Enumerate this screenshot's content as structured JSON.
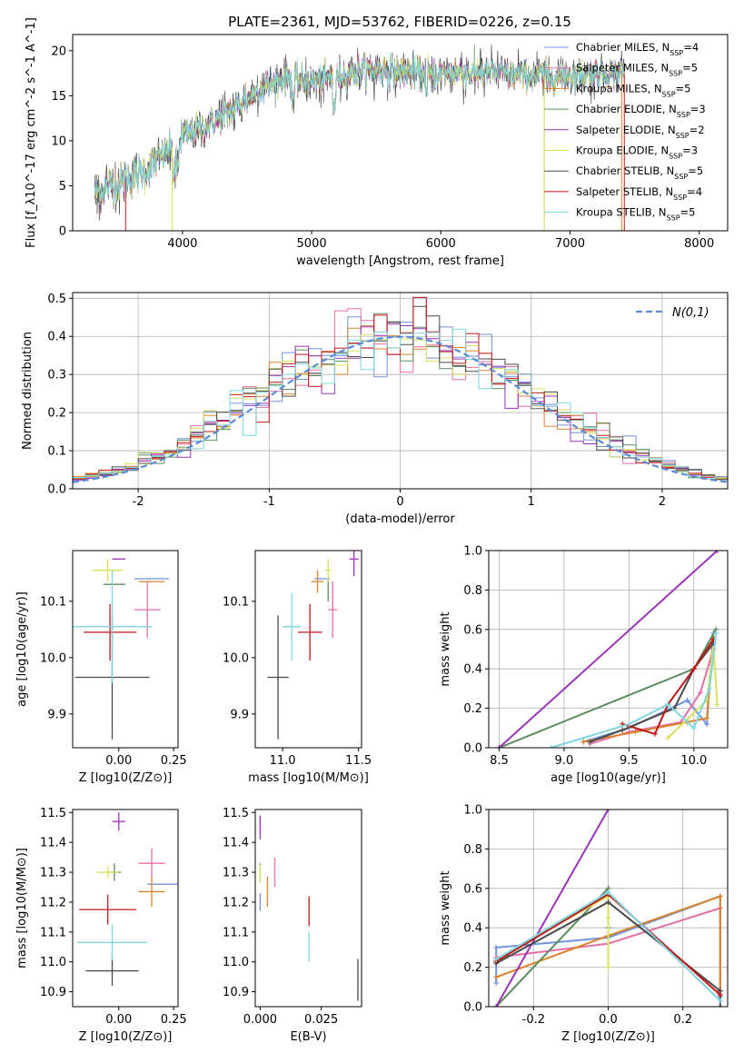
{
  "figure": {
    "title": "PLATE=2361, MJD=53762, FIBERID=0226, z=0.15"
  },
  "colors": {
    "Chabrier MILES": "#6f93dc",
    "Salpeter MILES": "#e66fa8",
    "Kroupa MILES": "#d9832b",
    "Chabrier ELODIE": "#5c8c5c",
    "Salpeter ELODIE": "#9b34b8",
    "Kroupa ELODIE": "#d8e060",
    "Chabrier STELIB": "#4a4a4a",
    "Salpeter STELIB": "#c01818",
    "Kroupa STELIB": "#7fd6e0",
    "gaussian": "#5a8ad8"
  },
  "chart_data": [
    {
      "id": "spectrum",
      "type": "line",
      "xlabel": "wavelength [Angstrom, rest frame]",
      "ylabel": "Flux [f_λ10^-17 erg cm^-2 s^-1 A^-1]",
      "xlim": [
        3150,
        8220
      ],
      "ylim": [
        0,
        21.8
      ],
      "xticks": [
        4000,
        5000,
        6000,
        7000,
        8000
      ],
      "yticks": [
        0,
        5,
        10,
        15,
        20
      ],
      "legend_position": "top-right",
      "series_note_unused": "",
      "legend": [
        {
          "name": "Chabrier MILES",
          "nssp": "4"
        },
        {
          "name": "Salpeter MILES",
          "nssp": "5"
        },
        {
          "name": "Kroupa MILES",
          "nssp": "5"
        },
        {
          "name": "Chabrier ELODIE",
          "nssp": "3"
        },
        {
          "name": "Salpeter ELODIE",
          "nssp": "2"
        },
        {
          "name": "Kroupa ELODIE",
          "nssp": "3"
        },
        {
          "name": "Chabrier STELIB",
          "nssp": "5"
        },
        {
          "name": "Salpeter STELIB",
          "nssp": "4"
        },
        {
          "name": "Kroupa STELIB",
          "nssp": "5"
        }
      ],
      "continuum": {
        "x": [
          3320,
          3500,
          3700,
          3900,
          4000,
          4200,
          4400,
          4600,
          4800,
          5000,
          5200,
          5400,
          5600,
          5800,
          6000,
          6200,
          6400,
          6600,
          6800,
          7000,
          7200,
          7400
        ],
        "y": [
          4.3,
          5.2,
          6.5,
          9.0,
          10.5,
          11.8,
          13.5,
          15.8,
          17.0,
          16.5,
          17.2,
          17.8,
          17.8,
          17.6,
          17.4,
          17.6,
          17.5,
          17.3,
          17.2,
          17.3,
          17.5,
          17.5
        ]
      },
      "spectrum_range": [
        3320,
        7420
      ]
    },
    {
      "id": "residuals",
      "type": "step",
      "xlabel": "(data-model)/error",
      "ylabel": "Normed distribution",
      "xlim": [
        -2.5,
        2.5
      ],
      "ylim": [
        0,
        0.515
      ],
      "xticks": [
        -2,
        -1,
        0,
        1,
        2
      ],
      "yticks": [
        0.0,
        0.1,
        0.2,
        0.3,
        0.4,
        0.5
      ],
      "grid": true,
      "legend_position": "top-right",
      "gaussian_label": "N(0,1)",
      "bin_width": 0.1
    },
    {
      "id": "z-vs-age",
      "type": "errorbar",
      "xlabel": "Z [log10(Z/Z⊙)]",
      "ylabel": "age  [log10(age/yr)]",
      "xlim": [
        -0.21,
        0.27
      ],
      "ylim": [
        9.84,
        10.19
      ],
      "xticks": [
        0.0,
        0.25
      ],
      "yticks": [
        9.9,
        10.0,
        10.1
      ],
      "points": [
        {
          "model": "Chabrier MILES",
          "x": 0.15,
          "xerr": 0.08,
          "y": 10.14,
          "yerr": 0.0
        },
        {
          "model": "Salpeter MILES",
          "x": 0.13,
          "xerr": 0.06,
          "y": 10.085,
          "yerr": 0.05
        },
        {
          "model": "Kroupa MILES",
          "x": 0.15,
          "xerr": 0.06,
          "y": 10.135,
          "yerr": 0.0
        },
        {
          "model": "Chabrier ELODIE",
          "x": -0.02,
          "xerr": 0.05,
          "y": 10.13,
          "yerr": 0.0
        },
        {
          "model": "Salpeter ELODIE",
          "x": 0.0,
          "xerr": 0.03,
          "y": 10.175,
          "yerr": 0.0
        },
        {
          "model": "Kroupa ELODIE",
          "x": -0.05,
          "xerr": 0.07,
          "y": 10.155,
          "yerr": 0.02
        },
        {
          "model": "Chabrier STELIB",
          "x": -0.03,
          "xerr": 0.17,
          "y": 9.965,
          "yerr": 0.11
        },
        {
          "model": "Salpeter STELIB",
          "x": -0.04,
          "xerr": 0.12,
          "y": 10.045,
          "yerr": 0.05
        },
        {
          "model": "Kroupa STELIB",
          "x": -0.03,
          "xerr": 0.18,
          "y": 10.055,
          "yerr": 0.1
        }
      ]
    },
    {
      "id": "mass-vs-age",
      "type": "errorbar",
      "xlabel": "mass [log10(M/M⊙)]",
      "ylabel": "",
      "xlim": [
        10.82,
        11.52
      ],
      "ylim": [
        9.84,
        10.19
      ],
      "xticks": [
        11.0,
        11.5
      ],
      "yticks": [
        9.9,
        10.0,
        10.1
      ],
      "points": [
        {
          "model": "Chabrier MILES",
          "x": 11.26,
          "xerr": 0.05,
          "y": 10.14,
          "yerr": 0.0
        },
        {
          "model": "Salpeter MILES",
          "x": 11.33,
          "xerr": 0.03,
          "y": 10.085,
          "yerr": 0.05
        },
        {
          "model": "Kroupa MILES",
          "x": 11.23,
          "xerr": 0.04,
          "y": 10.135,
          "yerr": 0.02
        },
        {
          "model": "Chabrier ELODIE",
          "x": 11.3,
          "xerr": 0.0,
          "y": 10.12,
          "yerr": 0.02
        },
        {
          "model": "Salpeter ELODIE",
          "x": 11.47,
          "xerr": 0.03,
          "y": 10.175,
          "yerr": 0.03
        },
        {
          "model": "Kroupa ELODIE",
          "x": 11.3,
          "xerr": 0.02,
          "y": 10.155,
          "yerr": 0.02
        },
        {
          "model": "Chabrier STELIB",
          "x": 10.97,
          "xerr": 0.07,
          "y": 9.965,
          "yerr": 0.11
        },
        {
          "model": "Salpeter STELIB",
          "x": 11.18,
          "xerr": 0.08,
          "y": 10.045,
          "yerr": 0.05
        },
        {
          "model": "Kroupa STELIB",
          "x": 11.06,
          "xerr": 0.06,
          "y": 10.055,
          "yerr": 0.06
        }
      ]
    },
    {
      "id": "age-vs-weight",
      "type": "line",
      "xlabel": "age  [log10(age/yr)]",
      "ylabel": "mass weight",
      "xlim": [
        8.42,
        10.26
      ],
      "ylim": [
        0,
        1.0
      ],
      "xticks": [
        8.5,
        9.0,
        9.5,
        10.0
      ],
      "yticks": [
        0.0,
        0.2,
        0.4,
        0.6,
        0.8,
        1.0
      ],
      "grid": true,
      "series": [
        {
          "model": "Chabrier MILES",
          "x": [
            9.15,
            9.5,
            9.95,
            10.1,
            10.15
          ],
          "y": [
            0.03,
            0.1,
            0.24,
            0.12,
            0.58
          ]
        },
        {
          "model": "Salpeter MILES",
          "x": [
            9.2,
            9.5,
            9.9,
            10.05,
            10.15
          ],
          "y": [
            0.02,
            0.08,
            0.13,
            0.28,
            0.5
          ]
        },
        {
          "model": "Kroupa MILES",
          "x": [
            9.15,
            9.55,
            9.95,
            10.1,
            10.15
          ],
          "y": [
            0.03,
            0.08,
            0.13,
            0.15,
            0.56
          ]
        },
        {
          "model": "Chabrier ELODIE",
          "x": [
            8.5,
            10.0,
            10.17
          ],
          "y": [
            0.0,
            0.4,
            0.6
          ]
        },
        {
          "model": "Salpeter ELODIE",
          "x": [
            8.5,
            10.18
          ],
          "y": [
            0.0,
            1.0
          ]
        },
        {
          "model": "Kroupa ELODIE",
          "x": [
            9.8,
            10.1,
            10.15,
            10.18
          ],
          "y": [
            0.05,
            0.24,
            0.52,
            0.22
          ]
        },
        {
          "model": "Chabrier STELIB",
          "x": [
            9.2,
            9.45,
            9.85,
            10.0,
            10.15
          ],
          "y": [
            0.03,
            0.09,
            0.2,
            0.4,
            0.53
          ]
        },
        {
          "model": "Salpeter STELIB",
          "x": [
            9.45,
            9.7,
            9.8,
            10.0,
            10.15
          ],
          "y": [
            0.12,
            0.07,
            0.22,
            0.4,
            0.55
          ]
        },
        {
          "model": "Kroupa STELIB",
          "x": [
            8.9,
            9.5,
            9.8,
            10.0,
            10.12,
            10.17
          ],
          "y": [
            0.0,
            0.12,
            0.22,
            0.1,
            0.3,
            0.58
          ]
        }
      ]
    },
    {
      "id": "z-vs-mass",
      "type": "errorbar",
      "xlabel": "Z [log10(Z/Z⊙)]",
      "ylabel": "mass [log10(M/M⊙)]",
      "xlim": [
        -0.21,
        0.27
      ],
      "ylim": [
        10.85,
        11.51
      ],
      "xticks": [
        0.0,
        0.25
      ],
      "yticks": [
        10.9,
        11.0,
        11.1,
        11.2,
        11.3,
        11.4,
        11.5
      ],
      "points": [
        {
          "model": "Chabrier MILES",
          "x": 0.2,
          "xerr": 0.07,
          "y": 11.26,
          "yerr": 0.0
        },
        {
          "model": "Salpeter MILES",
          "x": 0.15,
          "xerr": 0.06,
          "y": 11.33,
          "yerr": 0.05
        },
        {
          "model": "Kroupa MILES",
          "x": 0.15,
          "xerr": 0.06,
          "y": 11.235,
          "yerr": 0.05
        },
        {
          "model": "Chabrier ELODIE",
          "x": -0.02,
          "xerr": 0.03,
          "y": 11.3,
          "yerr": 0.03
        },
        {
          "model": "Salpeter ELODIE",
          "x": 0.0,
          "xerr": 0.03,
          "y": 11.47,
          "yerr": 0.03
        },
        {
          "model": "Kroupa ELODIE",
          "x": -0.05,
          "xerr": 0.05,
          "y": 11.3,
          "yerr": 0.02
        },
        {
          "model": "Chabrier STELIB",
          "x": -0.03,
          "xerr": 0.12,
          "y": 10.97,
          "yerr": 0.05
        },
        {
          "model": "Salpeter STELIB",
          "x": -0.05,
          "xerr": 0.13,
          "y": 11.175,
          "yerr": 0.05
        },
        {
          "model": "Kroupa STELIB",
          "x": -0.03,
          "xerr": 0.16,
          "y": 11.065,
          "yerr": 0.06
        }
      ]
    },
    {
      "id": "ebv-vs-mass",
      "type": "errorbar",
      "xlabel": "E(B-V)",
      "ylabel": "",
      "xlim": [
        -0.002,
        0.0415
      ],
      "ylim": [
        10.85,
        11.51
      ],
      "xticks": [
        0.0,
        0.025
      ],
      "xticklabels": [
        "0.000",
        "0.025"
      ],
      "yticks": [
        10.9,
        11.0,
        11.1,
        11.2,
        11.3,
        11.4,
        11.5
      ],
      "points": [
        {
          "model": "Chabrier MILES",
          "x": 0.0,
          "xerr": 0.0,
          "y": 11.2,
          "yerr": 0.03
        },
        {
          "model": "Salpeter MILES",
          "x": 0.006,
          "xerr": 0.0,
          "y": 11.3,
          "yerr": 0.05
        },
        {
          "model": "Kroupa MILES",
          "x": 0.003,
          "xerr": 0.0,
          "y": 11.235,
          "yerr": 0.05
        },
        {
          "model": "Chabrier ELODIE",
          "x": 0.0,
          "xerr": 0.0,
          "y": 11.3,
          "yerr": 0.03
        },
        {
          "model": "Salpeter ELODIE",
          "x": 0.0,
          "xerr": 0.0,
          "y": 11.45,
          "yerr": 0.04
        },
        {
          "model": "Kroupa ELODIE",
          "x": 0.0,
          "xerr": 0.0,
          "y": 11.295,
          "yerr": 0.03
        },
        {
          "model": "Chabrier STELIB",
          "x": 0.04,
          "xerr": 0.0,
          "y": 10.94,
          "yerr": 0.07
        },
        {
          "model": "Salpeter STELIB",
          "x": 0.02,
          "xerr": 0.0,
          "y": 11.17,
          "yerr": 0.05
        },
        {
          "model": "Kroupa STELIB",
          "x": 0.02,
          "xerr": 0.0,
          "y": 11.05,
          "yerr": 0.05
        }
      ]
    },
    {
      "id": "z-vs-weight",
      "type": "line",
      "xlabel": "Z [log10(Z/Z⊙)]",
      "ylabel": "mass weight",
      "xlim": [
        -0.32,
        0.32
      ],
      "ylim": [
        0,
        1.0
      ],
      "xticks": [
        -0.2,
        0.0,
        0.2
      ],
      "yticks": [
        0.0,
        0.2,
        0.4,
        0.6,
        0.8,
        1.0
      ],
      "grid": true,
      "series": [
        {
          "model": "Chabrier MILES",
          "x": [
            -0.3,
            -0.3,
            0.0,
            0.3,
            0.3
          ],
          "y": [
            0.12,
            0.3,
            0.35,
            0.56,
            0.05
          ]
        },
        {
          "model": "Salpeter MILES",
          "x": [
            -0.3,
            0.0,
            0.3,
            0.3
          ],
          "y": [
            0.25,
            0.32,
            0.5,
            0.08
          ]
        },
        {
          "model": "Kroupa MILES",
          "x": [
            -0.3,
            0.0,
            0.3,
            0.3
          ],
          "y": [
            0.15,
            0.36,
            0.56,
            0.08
          ]
        },
        {
          "model": "Chabrier ELODIE",
          "x": [
            -0.3,
            0.0,
            0.0
          ],
          "y": [
            0.0,
            0.6,
            0.4
          ]
        },
        {
          "model": "Salpeter ELODIE",
          "x": [
            -0.3,
            0.0
          ],
          "y": [
            0.0,
            1.0
          ]
        },
        {
          "model": "Kroupa ELODIE",
          "x": [
            -0.3,
            0.0,
            0.0,
            0.0
          ],
          "y": [
            0.24,
            0.56,
            0.2,
            0.45
          ]
        },
        {
          "model": "Chabrier STELIB",
          "x": [
            -0.3,
            0.0,
            0.3,
            0.3
          ],
          "y": [
            0.22,
            0.53,
            0.08,
            0.0
          ]
        },
        {
          "model": "Salpeter STELIB",
          "x": [
            -0.3,
            0.0,
            0.3
          ],
          "y": [
            0.23,
            0.57,
            0.06
          ]
        },
        {
          "model": "Kroupa STELIB",
          "x": [
            -0.3,
            0.0,
            0.3
          ],
          "y": [
            0.24,
            0.58,
            0.03
          ]
        }
      ]
    }
  ]
}
